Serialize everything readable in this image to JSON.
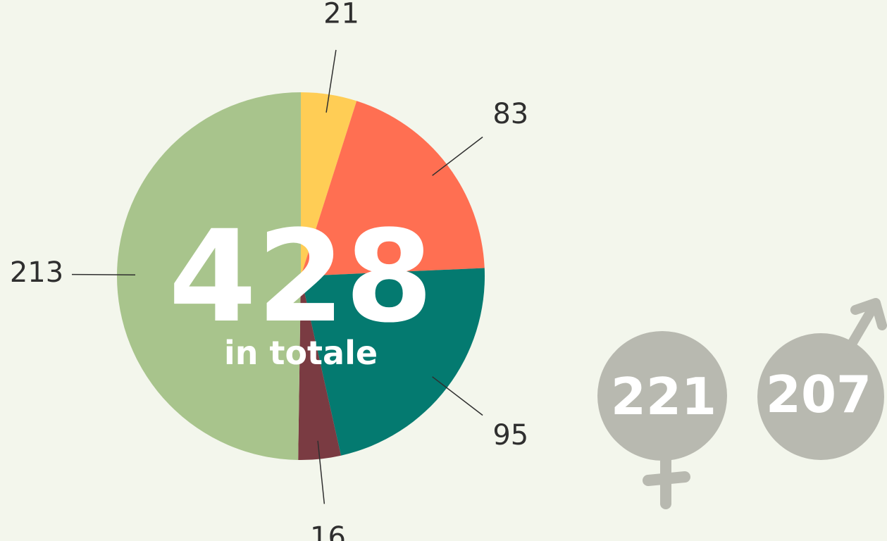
{
  "chart_data": {
    "type": "pie",
    "values": [
      21,
      83,
      95,
      16,
      213
    ],
    "colors": [
      "#ffcd55",
      "#ff6f52",
      "#047a70",
      "#7a3b42",
      "#a8c48c"
    ],
    "start_angle": 0,
    "direction": "clockwise",
    "center_value": 428,
    "center_label": "in totale",
    "gender_counts": [
      221,
      207
    ],
    "gender_color": "#b8b9b0"
  }
}
